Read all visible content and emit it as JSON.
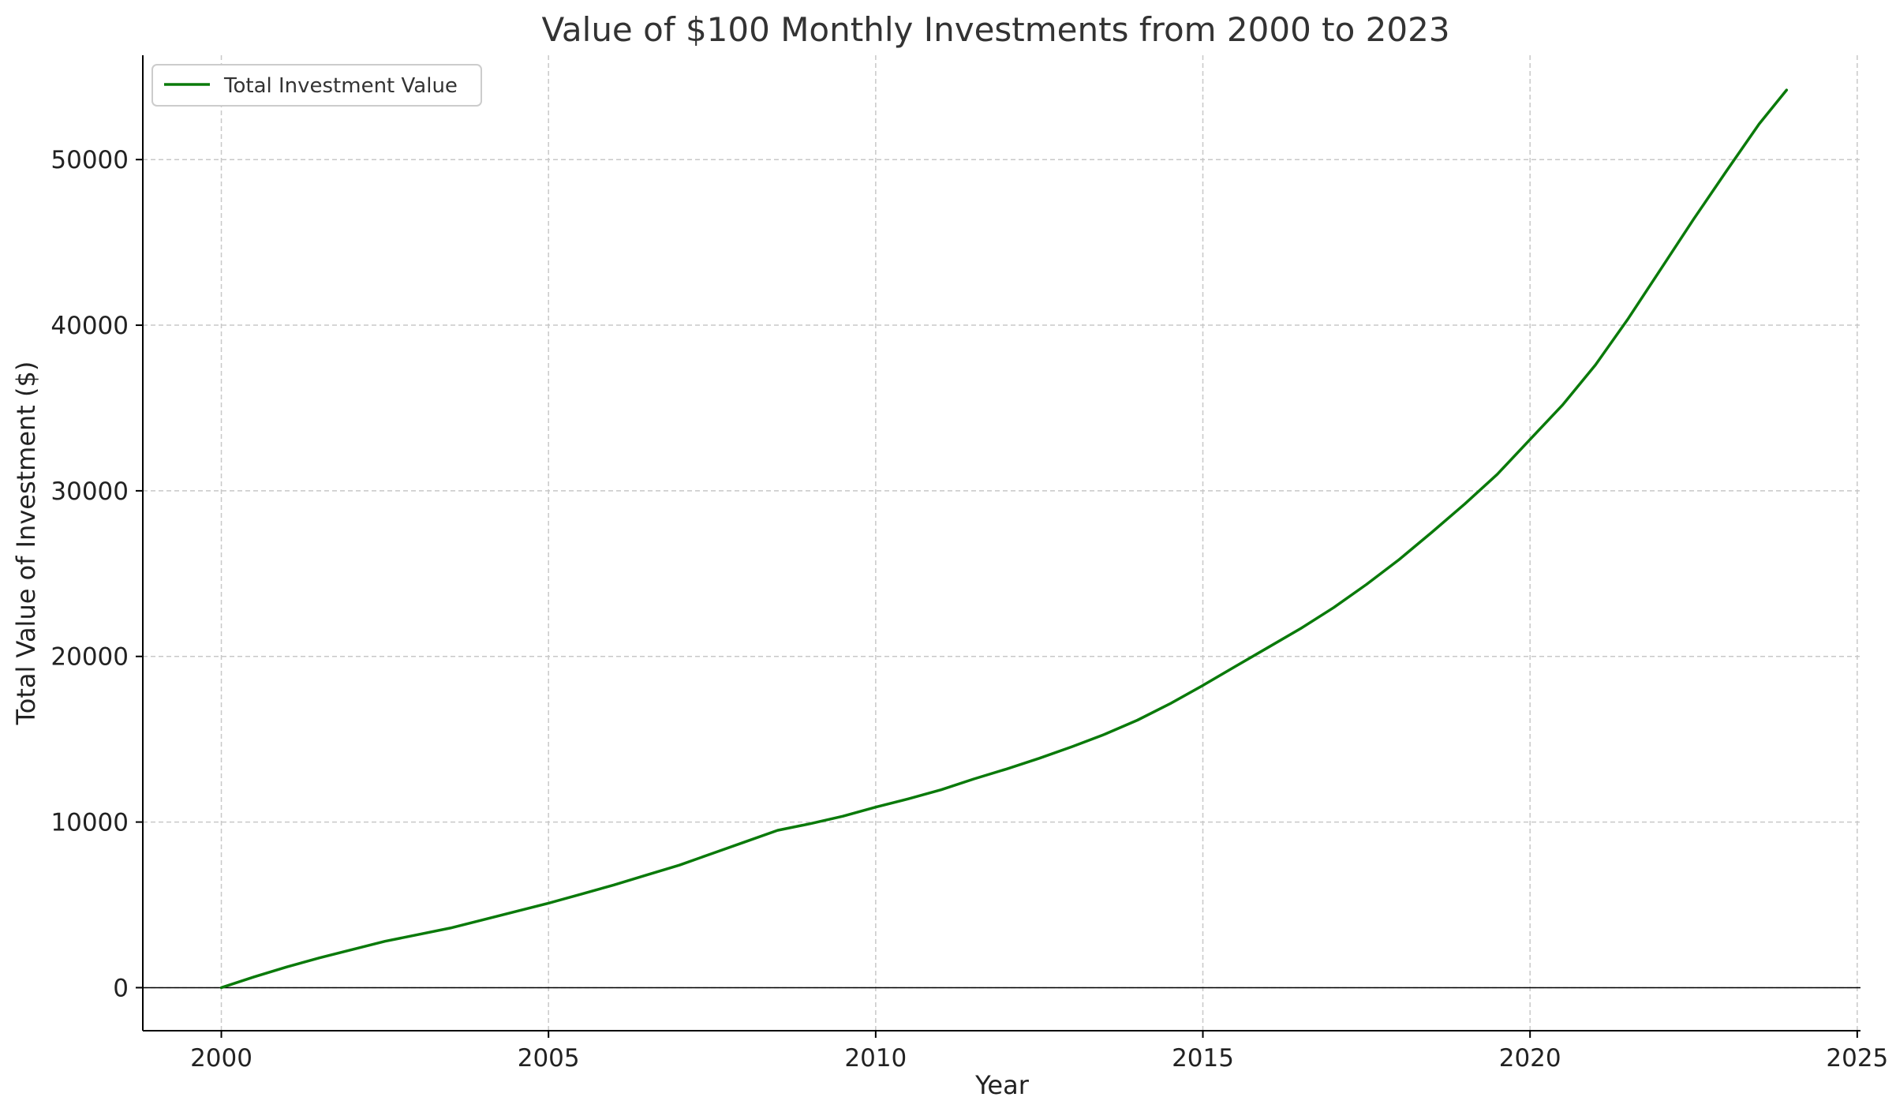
{
  "chart_data": {
    "type": "line",
    "title": "Value of $100 Monthly Investments from 2000 to 2023",
    "xlabel": "Year",
    "ylabel": "Total Value of Investment ($)",
    "xlim": [
      1998.8,
      2025.05
    ],
    "ylim": [
      -2600,
      56300
    ],
    "x_ticks": [
      2000,
      2005,
      2010,
      2015,
      2020,
      2025
    ],
    "x_tick_labels": [
      "2000",
      "2005",
      "2010",
      "2015",
      "2020",
      "2025"
    ],
    "y_ticks": [
      0,
      10000,
      20000,
      30000,
      40000,
      50000
    ],
    "y_tick_labels": [
      "0",
      "10000",
      "20000",
      "30000",
      "40000",
      "50000"
    ],
    "grid": true,
    "zero_line": true,
    "legend_position": "top-left",
    "series": [
      {
        "name": "Total Investment Value",
        "color": "#0a7a0a",
        "x": [
          2000,
          2000.5,
          2001,
          2001.5,
          2002,
          2002.5,
          2003,
          2003.5,
          2004,
          2004.5,
          2005,
          2005.5,
          2006,
          2006.5,
          2007,
          2007.5,
          2008,
          2008.5,
          2009,
          2009.5,
          2010,
          2010.5,
          2011,
          2011.5,
          2012,
          2012.5,
          2013,
          2013.5,
          2014,
          2014.5,
          2015,
          2015.5,
          2016,
          2016.5,
          2017,
          2017.5,
          2018,
          2018.5,
          2019,
          2019.5,
          2020,
          2020.5,
          2021,
          2021.5,
          2022,
          2022.5,
          2023,
          2023.5,
          2023.92
        ],
        "values": [
          0,
          650,
          1250,
          1800,
          2300,
          2800,
          3200,
          3600,
          4100,
          4600,
          5100,
          5650,
          6200,
          6800,
          7400,
          8100,
          8800,
          9500,
          9900,
          10350,
          10900,
          11400,
          11950,
          12600,
          13200,
          13850,
          14550,
          15300,
          16150,
          17150,
          18250,
          19400,
          20550,
          21700,
          22950,
          24350,
          25850,
          27500,
          29200,
          31000,
          33100,
          35200,
          37600,
          40400,
          43400,
          46400,
          49300,
          52150,
          54200
        ]
      }
    ]
  }
}
